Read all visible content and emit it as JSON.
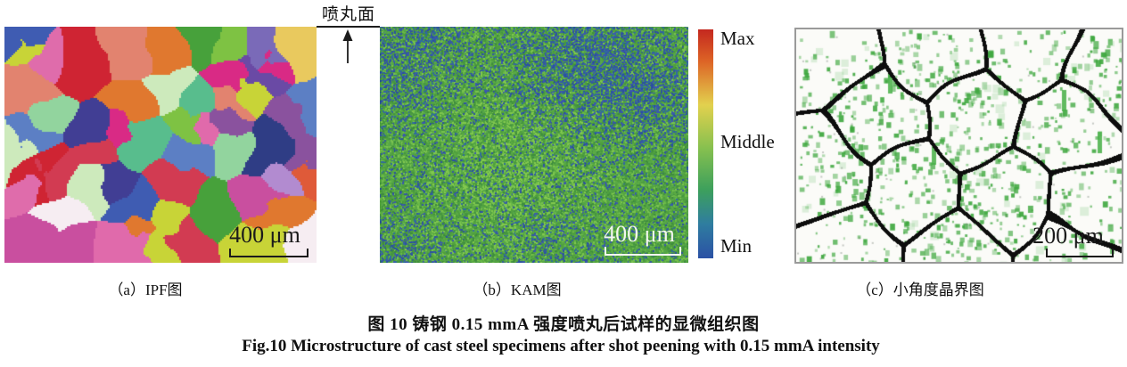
{
  "figure": {
    "surface_annotation": {
      "label": "喷丸面"
    },
    "panels": [
      {
        "letter": "a",
        "caption": "（a）IPF图",
        "scale_bar_label": "400 μm"
      },
      {
        "letter": "b",
        "caption": "（b）KAM图",
        "scale_bar_label": "400 μm"
      },
      {
        "letter": "c",
        "caption": "（c）小角度晶界图",
        "scale_bar_label": "200 μm"
      }
    ],
    "colorbar": {
      "label_max": "Max",
      "label_middle": "Middle",
      "label_min": "Min",
      "gradient_colors": [
        "#c4281f",
        "#dd6426",
        "#e2d14e",
        "#86c04f",
        "#3da05c",
        "#2f7da0",
        "#2b51a5"
      ],
      "gradient_stops": [
        0,
        0.14,
        0.33,
        0.52,
        0.7,
        0.85,
        1
      ]
    },
    "caption_zh": "图 10  铸钢 0.15 mmA 强度喷丸后试样的显微组织图",
    "caption_en": "Fig.10  Microstructure of cast steel specimens after shot peening with 0.15 mmA intensity",
    "palettes": {
      "ipf_palette": [
        "#d23b52",
        "#cf2433",
        "#e2836f",
        "#d92a85",
        "#b03193",
        "#6a4aa5",
        "#413e94",
        "#5c7fc4",
        "#3f5cb2",
        "#58bd8d",
        "#92d49e",
        "#7ec243",
        "#47a13b",
        "#cdeabc",
        "#e9c95e",
        "#e0782f",
        "#df5a39",
        "#df6cab",
        "#f0b4d6",
        "#b28bd0",
        "#8a529e",
        "#c94f9f",
        "#7a6ab8",
        "#2f3d85",
        "#e06aab",
        "#f6edf2",
        "#c8d437"
      ],
      "kam_base": "#52a341",
      "kam_greens": [
        "#4f9f3d",
        "#5cab43",
        "#6ab948",
        "#79c24f",
        "#459541",
        "#3e8c3e",
        "#57a74a",
        "#82c84e"
      ],
      "kam_blues": [
        "#2b4fa2",
        "#33599f",
        "#2f6b9e",
        "#3b57b0"
      ],
      "lagb_background": "#fbfbf8",
      "lagb_dot_green": "#40a840",
      "lagb_boundary_black": "#0d0d0d"
    }
  }
}
